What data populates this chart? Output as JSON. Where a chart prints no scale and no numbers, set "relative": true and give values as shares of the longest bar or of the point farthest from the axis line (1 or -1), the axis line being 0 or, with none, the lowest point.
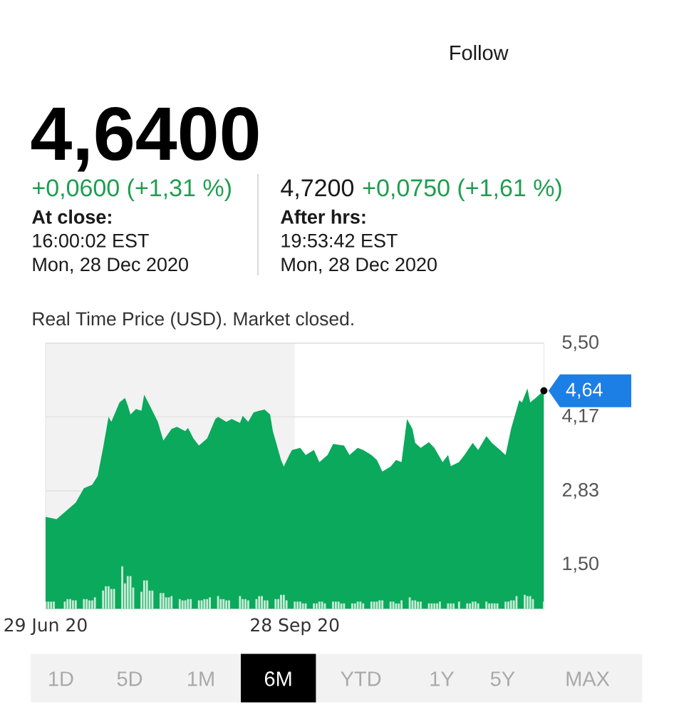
{
  "chart_data": [
    {
      "type": "area",
      "title": "4,6400",
      "subtitle": "Real Time Price (USD). Market closed.",
      "annotations": [
        "Follow",
        "+0,0600 (+1,31 %)",
        "At close:",
        "16:00:02 EST",
        "Mon, 28 Dec 2020",
        "4,7200",
        "+0,0750 (+1,61 %)",
        "After hrs:",
        "19:53:42 EST",
        "Mon, 28 Dec 2020",
        "1D",
        "5D",
        "1M",
        "6M",
        "YTD",
        "1Y",
        "5Y",
        "MAX"
      ],
      "xlim": [
        "2020-06-29",
        "2020-12-28"
      ],
      "xticks": [
        {
          "value": "2020-06-29",
          "label": "29 Jun 20"
        },
        {
          "value": "2020-09-28",
          "label": "28 Sep 20"
        }
      ],
      "ylim": [
        0.7,
        5.5
      ],
      "yticks": [
        {
          "value": 1.5,
          "label": "1,50"
        },
        {
          "value": 2.83,
          "label": "2,83"
        },
        {
          "value": 4.17,
          "label": "4,17"
        },
        {
          "value": 5.5,
          "label": "5,50"
        }
      ],
      "grid": "y",
      "bands": [
        {
          "axis": "x",
          "from": "2020-06-29",
          "to": "2020-09-28",
          "color": "#f2f2f2"
        }
      ],
      "series": [
        {
          "color": "#0aa95c",
          "x": [
            "2020-06-29",
            "2020-07-03",
            "2020-07-07",
            "2020-07-10",
            "2020-07-13",
            "2020-07-16",
            "2020-07-18",
            "2020-07-20",
            "2020-07-22",
            "2020-07-23",
            "2020-07-26",
            "2020-07-28",
            "2020-07-29",
            "2020-07-30",
            "2020-08-01",
            "2020-08-03",
            "2020-08-04",
            "2020-08-06",
            "2020-08-07",
            "2020-08-09",
            "2020-08-11",
            "2020-08-14",
            "2020-08-16",
            "2020-08-19",
            "2020-08-20",
            "2020-08-22",
            "2020-08-24",
            "2020-08-27",
            "2020-08-30",
            "2020-08-31",
            "2020-09-03",
            "2020-09-05",
            "2020-09-08",
            "2020-09-09",
            "2020-09-11",
            "2020-09-13",
            "2020-09-15",
            "2020-09-17",
            "2020-09-19",
            "2020-09-20",
            "2020-09-23",
            "2020-09-24",
            "2020-09-26",
            "2020-09-27",
            "2020-09-30",
            "2020-10-02",
            "2020-10-05",
            "2020-10-07",
            "2020-10-10",
            "2020-10-12",
            "2020-10-16",
            "2020-10-18",
            "2020-10-21",
            "2020-10-23",
            "2020-10-26",
            "2020-10-28",
            "2020-10-30",
            "2020-11-02",
            "2020-11-04",
            "2020-11-06",
            "2020-11-08",
            "2020-11-10",
            "2020-11-11",
            "2020-11-13",
            "2020-11-16",
            "2020-11-18",
            "2020-11-21",
            "2020-11-23",
            "2020-11-24",
            "2020-11-27",
            "2020-11-29",
            "2020-12-02",
            "2020-12-04",
            "2020-12-07",
            "2020-12-09",
            "2020-12-12",
            "2020-12-14",
            "2020-12-16",
            "2020-12-19",
            "2020-12-20",
            "2020-12-22",
            "2020-12-23",
            "2020-12-25",
            "2020-12-27",
            "2020-12-28"
          ],
          "values": [
            2.36,
            2.32,
            2.49,
            2.62,
            2.88,
            2.94,
            3.1,
            3.61,
            4.17,
            4.08,
            4.43,
            4.51,
            4.38,
            4.21,
            4.31,
            4.28,
            4.57,
            4.38,
            4.28,
            4.08,
            3.74,
            3.95,
            3.99,
            3.91,
            3.97,
            3.78,
            3.65,
            3.78,
            4.13,
            4.17,
            4.08,
            4.13,
            4.06,
            4.19,
            4.08,
            4.25,
            4.28,
            4.3,
            4.21,
            3.91,
            3.39,
            3.27,
            3.48,
            3.57,
            3.61,
            3.48,
            3.57,
            3.35,
            3.48,
            3.68,
            3.65,
            3.48,
            3.61,
            3.57,
            3.48,
            3.39,
            3.18,
            3.27,
            3.39,
            3.35,
            4.13,
            3.95,
            3.7,
            3.61,
            3.71,
            3.61,
            3.35,
            3.48,
            3.28,
            3.35,
            3.48,
            3.7,
            3.57,
            3.82,
            3.7,
            3.57,
            3.48,
            3.95,
            4.47,
            4.43,
            4.68,
            4.43,
            4.51,
            4.6,
            4.64
          ]
        },
        {
          "type": "scatter",
          "color": "#000000",
          "marker": "circle",
          "x": [
            "2020-12-28"
          ],
          "values": [
            4.64
          ],
          "value_labels": [
            "4,64"
          ]
        }
      ]
    },
    {
      "type": "bar",
      "relative": true,
      "tick_labels": false,
      "color": "#c9ecd6",
      "xlim": [
        "2020-06-29",
        "2020-12-28"
      ],
      "x": [
        "2020-06-29",
        "2020-06-30",
        "2020-07-01",
        "2020-07-02",
        "2020-07-06",
        "2020-07-07",
        "2020-07-08",
        "2020-07-09",
        "2020-07-10",
        "2020-07-13",
        "2020-07-14",
        "2020-07-15",
        "2020-07-16",
        "2020-07-17",
        "2020-07-20",
        "2020-07-21",
        "2020-07-22",
        "2020-07-23",
        "2020-07-24",
        "2020-07-27",
        "2020-07-28",
        "2020-07-29",
        "2020-07-30",
        "2020-07-31",
        "2020-08-03",
        "2020-08-04",
        "2020-08-05",
        "2020-08-06",
        "2020-08-07",
        "2020-08-10",
        "2020-08-11",
        "2020-08-12",
        "2020-08-13",
        "2020-08-14",
        "2020-08-17",
        "2020-08-18",
        "2020-08-19",
        "2020-08-20",
        "2020-08-21",
        "2020-08-24",
        "2020-08-25",
        "2020-08-26",
        "2020-08-27",
        "2020-08-28",
        "2020-08-31",
        "2020-09-01",
        "2020-09-02",
        "2020-09-03",
        "2020-09-04",
        "2020-09-08",
        "2020-09-09",
        "2020-09-10",
        "2020-09-11",
        "2020-09-14",
        "2020-09-15",
        "2020-09-16",
        "2020-09-17",
        "2020-09-18",
        "2020-09-21",
        "2020-09-22",
        "2020-09-23",
        "2020-09-24",
        "2020-09-25",
        "2020-09-28",
        "2020-09-29",
        "2020-09-30",
        "2020-10-01",
        "2020-10-02",
        "2020-10-05",
        "2020-10-06",
        "2020-10-07",
        "2020-10-08",
        "2020-10-09",
        "2020-10-12",
        "2020-10-13",
        "2020-10-14",
        "2020-10-15",
        "2020-10-16",
        "2020-10-19",
        "2020-10-20",
        "2020-10-21",
        "2020-10-22",
        "2020-10-23",
        "2020-10-26",
        "2020-10-27",
        "2020-10-28",
        "2020-10-29",
        "2020-10-30",
        "2020-11-02",
        "2020-11-03",
        "2020-11-04",
        "2020-11-05",
        "2020-11-06",
        "2020-11-09",
        "2020-11-10",
        "2020-11-11",
        "2020-11-12",
        "2020-11-13",
        "2020-11-16",
        "2020-11-17",
        "2020-11-18",
        "2020-11-19",
        "2020-11-20",
        "2020-11-23",
        "2020-11-24",
        "2020-11-25",
        "2020-11-27",
        "2020-11-30",
        "2020-12-01",
        "2020-12-02",
        "2020-12-03",
        "2020-12-04",
        "2020-12-07",
        "2020-12-08",
        "2020-12-09",
        "2020-12-10",
        "2020-12-11",
        "2020-12-14",
        "2020-12-15",
        "2020-12-16",
        "2020-12-17",
        "2020-12-18",
        "2020-12-21",
        "2020-12-22",
        "2020-12-23",
        "2020-12-24",
        "2020-12-28"
      ],
      "values": [
        0.17,
        0.17,
        0.17,
        0.17,
        0.17,
        0.23,
        0.23,
        0.2,
        0.2,
        0.23,
        0.23,
        0.2,
        0.2,
        0.27,
        0.43,
        0.53,
        0.53,
        0.47,
        0.47,
        1,
        0.6,
        0.77,
        0.77,
        0.5,
        0.4,
        0.67,
        0.67,
        0.43,
        0.43,
        0.37,
        0.37,
        0.27,
        0.27,
        0.3,
        0.23,
        0.2,
        0.2,
        0.23,
        0.23,
        0.2,
        0.2,
        0.23,
        0.23,
        0.27,
        0.3,
        0.23,
        0.23,
        0.2,
        0.2,
        0.3,
        0.23,
        0.23,
        0.2,
        0.23,
        0.3,
        0.3,
        0.2,
        0.2,
        0.23,
        0.23,
        0.33,
        0.33,
        0.2,
        0.17,
        0.17,
        0.17,
        0.13,
        0.13,
        0.13,
        0.13,
        0.17,
        0.17,
        0.13,
        0.17,
        0.17,
        0.17,
        0.13,
        0.13,
        0.13,
        0.13,
        0.17,
        0.17,
        0.13,
        0.17,
        0.17,
        0.17,
        0.2,
        0.2,
        0.17,
        0.17,
        0.13,
        0.13,
        0.2,
        0.27,
        0.2,
        0.2,
        0.17,
        0.17,
        0.13,
        0.13,
        0.13,
        0.13,
        0.17,
        0.13,
        0.13,
        0.13,
        0.17,
        0.13,
        0.13,
        0.17,
        0.17,
        0.13,
        0.17,
        0.13,
        0.13,
        0.13,
        0.13,
        0.17,
        0.17,
        0.2,
        0.2,
        0.3,
        0.33,
        0.3,
        0.3,
        0.23,
        0.17
      ]
    }
  ]
}
